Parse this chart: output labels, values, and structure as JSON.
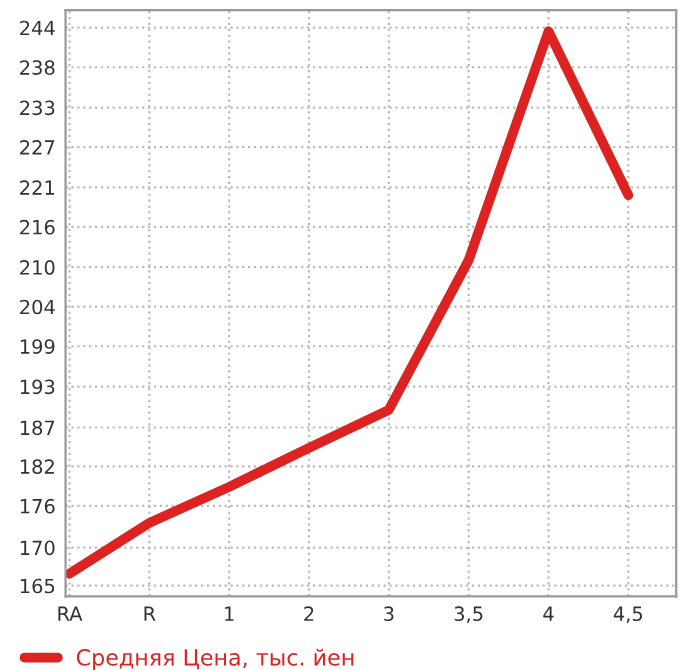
{
  "chart_data": {
    "type": "line",
    "categories": [
      "RA",
      "R",
      "1",
      "2",
      "3",
      "3,5",
      "4",
      "4,5"
    ],
    "series": [
      {
        "name": "Средняя Цена, тыс. йен",
        "color": "#dd2222",
        "values": [
          166.7,
          173.9,
          179.0,
          184.5,
          189.9,
          211.1,
          243.5,
          220.3
        ]
      }
    ],
    "ylim": [
      163.5,
      246.5
    ],
    "yticks": [
      {
        "value": 165.0,
        "label": "165"
      },
      {
        "value": 170.4,
        "label": "170"
      },
      {
        "value": 176.3,
        "label": "176"
      },
      {
        "value": 181.9,
        "label": "182"
      },
      {
        "value": 187.4,
        "label": "187"
      },
      {
        "value": 193.2,
        "label": "193"
      },
      {
        "value": 198.9,
        "label": "199"
      },
      {
        "value": 204.5,
        "label": "204"
      },
      {
        "value": 210.1,
        "label": "210"
      },
      {
        "value": 215.8,
        "label": "216"
      },
      {
        "value": 221.4,
        "label": "221"
      },
      {
        "value": 227.1,
        "label": "227"
      },
      {
        "value": 232.7,
        "label": "233"
      },
      {
        "value": 238.4,
        "label": "238"
      },
      {
        "value": 244.0,
        "label": "244"
      }
    ],
    "grid": true,
    "legend": "bottom left",
    "marker": "none",
    "line_style": "solid"
  }
}
